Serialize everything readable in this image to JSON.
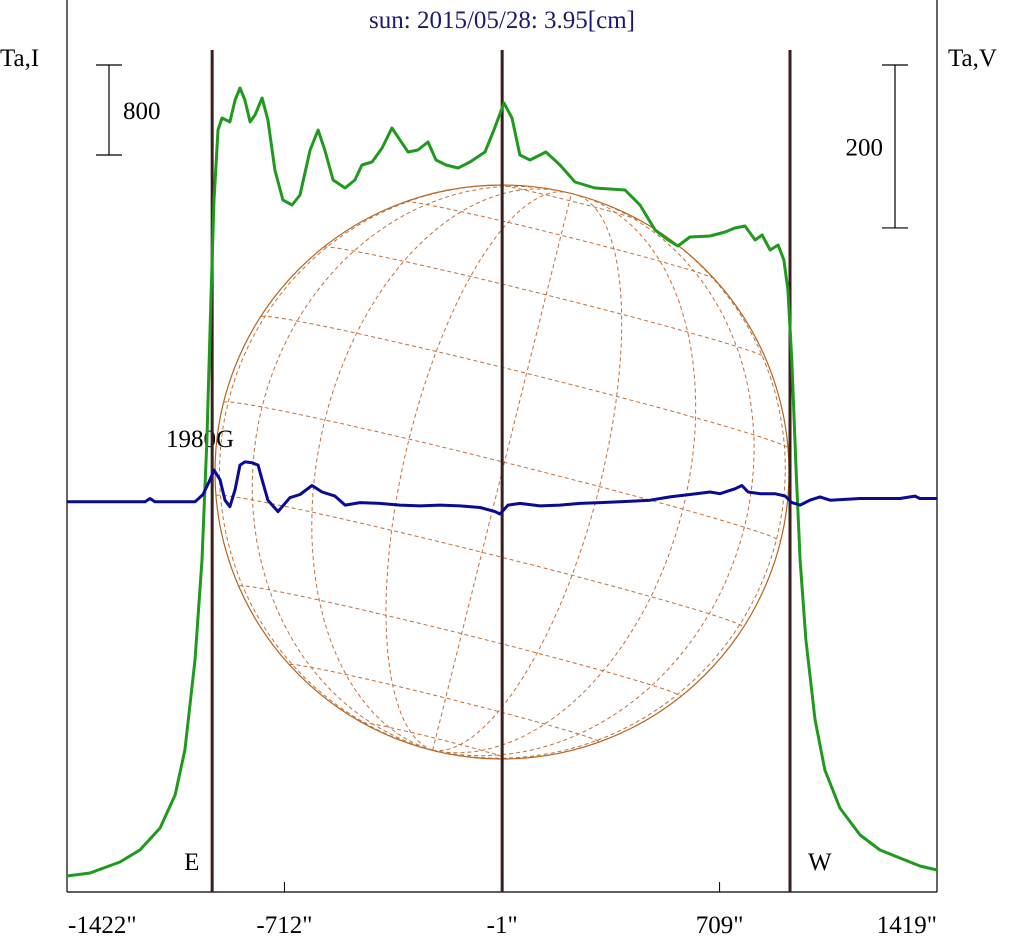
{
  "chart_data": {
    "type": "line",
    "title": "sun: 2015/05/28: 3.95[cm]",
    "ylabel": "Ta,I",
    "y2label": "Ta,V",
    "xlim": [
      -1422,
      1419
    ],
    "xticks": [
      {
        "value": -1422,
        "label": "-1422\""
      },
      {
        "value": -712,
        "label": "-712\""
      },
      {
        "value": -1,
        "label": "-1\""
      },
      {
        "value": 709,
        "label": "709\""
      },
      {
        "value": 1419,
        "label": "1419\""
      }
    ],
    "ylim": [
      0,
      7929
    ],
    "y2lim": [
      -479,
      616
    ],
    "scale_bars": [
      {
        "value": 800,
        "axis": "y"
      },
      {
        "value": 200,
        "axis": "y2"
      }
    ],
    "vlines": [
      {
        "value": -948,
        "label": "E"
      },
      {
        "value": -1
      },
      {
        "value": 939,
        "label": "W"
      }
    ],
    "annotation": "1980G",
    "series": [
      {
        "color": "#1f9a1f",
        "x": [
          -1422,
          -1347,
          -1249,
          -1184,
          -1118,
          -1069,
          -1037,
          -1004,
          -981,
          -965,
          -952,
          -942,
          -929,
          -916,
          -890,
          -873,
          -857,
          -841,
          -824,
          -808,
          -785,
          -766,
          -743,
          -717,
          -687,
          -661,
          -628,
          -602,
          -580,
          -553,
          -514,
          -482,
          -459,
          -426,
          -393,
          -361,
          -335,
          -308,
          -276,
          -243,
          -217,
          -184,
          -145,
          -106,
          -57,
          -28,
          5,
          31,
          57,
          90,
          142,
          188,
          237,
          302,
          400,
          449,
          498,
          541,
          573,
          612,
          678,
          727,
          759,
          792,
          825,
          848,
          874,
          900,
          919,
          932,
          945,
          959,
          972,
          991,
          1021,
          1053,
          1102,
          1168,
          1233,
          1298,
          1363,
          1419
        ],
        "values": [
          142,
          169,
          267,
          373,
          569,
          862,
          1262,
          2062,
          2951,
          4018,
          5262,
          6151,
          6773,
          6880,
          6845,
          7040,
          7147,
          7040,
          6845,
          6907,
          7058,
          6862,
          6418,
          6151,
          6107,
          6196,
          6596,
          6773,
          6596,
          6329,
          6258,
          6329,
          6462,
          6489,
          6613,
          6791,
          6685,
          6578,
          6596,
          6667,
          6507,
          6462,
          6436,
          6489,
          6578,
          6773,
          7013,
          6880,
          6551,
          6507,
          6578,
          6462,
          6311,
          6258,
          6240,
          6107,
          5885,
          5796,
          5742,
          5822,
          5831,
          5867,
          5902,
          5920,
          5796,
          5840,
          5707,
          5751,
          5618,
          5351,
          4729,
          3751,
          2951,
          2240,
          1529,
          1084,
          747,
          507,
          373,
          302,
          231,
          196
        ]
      },
      {
        "color": "#0a0a96",
        "axis": "y2",
        "x": [
          -1422,
          -1167,
          -1151,
          -1135,
          -1004,
          -978,
          -955,
          -942,
          -922,
          -906,
          -890,
          -873,
          -857,
          -841,
          -818,
          -798,
          -785,
          -766,
          -733,
          -694,
          -661,
          -622,
          -589,
          -547,
          -514,
          -465,
          -400,
          -335,
          -269,
          -204,
          -139,
          -73,
          -24,
          -8,
          18,
          57,
          123,
          188,
          253,
          319,
          384,
          482,
          547,
          612,
          678,
          710,
          759,
          782,
          802,
          841,
          890,
          923,
          945,
          972,
          1004,
          1037,
          1070,
          1168,
          1298,
          1347,
          1363,
          1419
        ],
        "values": [
          0,
          0,
          4,
          0,
          0,
          9,
          27,
          39,
          27,
          2,
          -6,
          15,
          45,
          49,
          48,
          45,
          27,
          2,
          -12,
          5,
          9,
          20,
          12,
          7,
          -4,
          -1,
          -2,
          -4,
          -5,
          -4,
          -5,
          -7,
          -12,
          -15,
          -4,
          -2,
          -5,
          -4,
          -2,
          -1,
          0,
          2,
          6,
          9,
          12,
          10,
          16,
          20,
          12,
          10,
          10,
          7,
          -1,
          -4,
          2,
          6,
          2,
          4,
          4,
          7,
          4,
          4
        ]
      }
    ]
  }
}
